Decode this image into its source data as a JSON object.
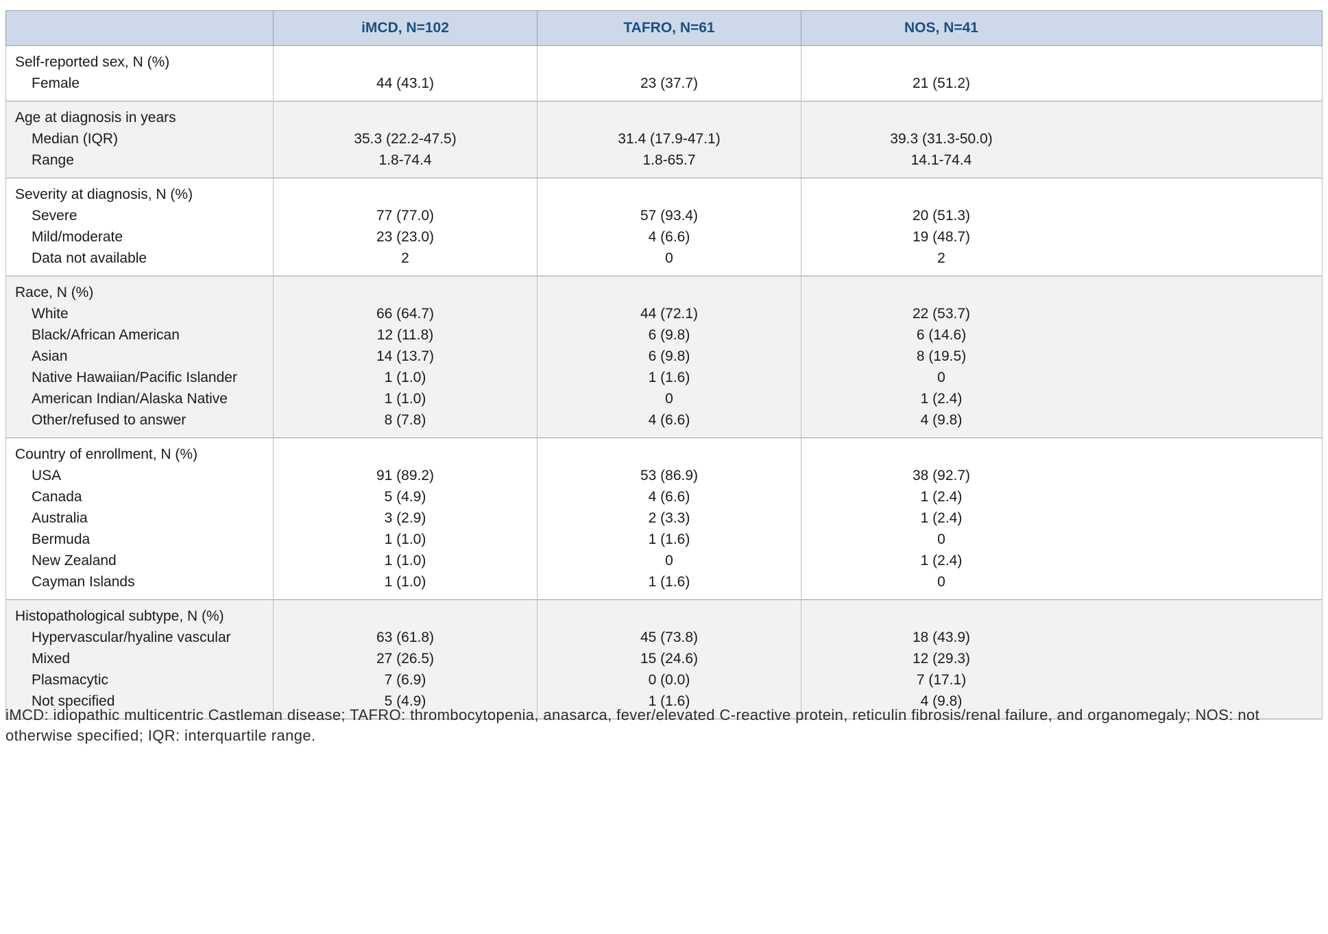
{
  "table": {
    "columns": [
      "",
      "iMCD, N=102",
      "TAFRO, N=61",
      "NOS, N=41"
    ],
    "sections": [
      {
        "header": "Self-reported sex, N (%)",
        "rows": [
          {
            "label": "Female",
            "values": [
              "44 (43.1)",
              "23 (37.7)",
              "21 (51.2)"
            ]
          }
        ]
      },
      {
        "header": "Age at diagnosis in years",
        "rows": [
          {
            "label": "Median (IQR)",
            "values": [
              "35.3 (22.2-47.5)",
              "31.4 (17.9-47.1)",
              "39.3 (31.3-50.0)"
            ]
          },
          {
            "label": "Range",
            "values": [
              "1.8-74.4",
              "1.8-65.7",
              "14.1-74.4"
            ]
          }
        ]
      },
      {
        "header": "Severity at diagnosis, N (%)",
        "rows": [
          {
            "label": "Severe",
            "values": [
              "77 (77.0)",
              "57 (93.4)",
              "20 (51.3)"
            ]
          },
          {
            "label": "Mild/moderate",
            "values": [
              "23 (23.0)",
              "4 (6.6)",
              "19 (48.7)"
            ]
          },
          {
            "label": "Data not available",
            "values": [
              "2",
              "0",
              "2"
            ]
          }
        ]
      },
      {
        "header": "Race, N (%)",
        "rows": [
          {
            "label": "White",
            "values": [
              "66 (64.7)",
              "44 (72.1)",
              "22 (53.7)"
            ]
          },
          {
            "label": "Black/African American",
            "values": [
              "12 (11.8)",
              "6 (9.8)",
              "6 (14.6)"
            ]
          },
          {
            "label": "Asian",
            "values": [
              "14 (13.7)",
              "6 (9.8)",
              "8 (19.5)"
            ]
          },
          {
            "label": "Native Hawaiian/Pacific Islander",
            "values": [
              "1 (1.0)",
              "1 (1.6)",
              "0"
            ]
          },
          {
            "label": "American Indian/Alaska Native",
            "values": [
              "1 (1.0)",
              "0",
              "1 (2.4)"
            ]
          },
          {
            "label": "Other/refused to answer",
            "values": [
              "8 (7.8)",
              "4 (6.6)",
              "4 (9.8)"
            ]
          }
        ]
      },
      {
        "header": "Country of enrollment, N (%)",
        "rows": [
          {
            "label": "USA",
            "values": [
              "91 (89.2)",
              "53 (86.9)",
              "38 (92.7)"
            ]
          },
          {
            "label": "Canada",
            "values": [
              "5 (4.9)",
              "4 (6.6)",
              "1 (2.4)"
            ]
          },
          {
            "label": "Australia",
            "values": [
              "3 (2.9)",
              "2 (3.3)",
              "1 (2.4)"
            ]
          },
          {
            "label": "Bermuda",
            "values": [
              "1 (1.0)",
              "1 (1.6)",
              "0"
            ]
          },
          {
            "label": "New Zealand",
            "values": [
              "1 (1.0)",
              "0",
              "1 (2.4)"
            ]
          },
          {
            "label": "Cayman Islands",
            "values": [
              "1 (1.0)",
              "1 (1.6)",
              "0"
            ]
          }
        ]
      },
      {
        "header": "Histopathological subtype, N (%)",
        "rows": [
          {
            "label": "Hypervascular/hyaline vascular",
            "values": [
              "63 (61.8)",
              "45 (73.8)",
              "18 (43.9)"
            ]
          },
          {
            "label": "Mixed",
            "values": [
              "27 (26.5)",
              "15 (24.6)",
              "12 (29.3)"
            ]
          },
          {
            "label": "Plasmacytic",
            "values": [
              "7 (6.9)",
              "0 (0.0)",
              "7 (17.1)"
            ]
          },
          {
            "label": "Not specified",
            "values": [
              "5 (4.9)",
              "1 (1.6)",
              "4 (9.8)"
            ]
          }
        ]
      }
    ]
  },
  "footnote": "iMCD: idiopathic multicentric Castleman disease; TAFRO: thrombocytopenia, anasarca, fever/elevated C-reactive protein, reticulin fibrosis/renal failure, and organomegaly; NOS: not otherwise specified; IQR: interquartile range.",
  "colors": {
    "header_bg": "#cdd9e9",
    "header_text": "#1c4f83",
    "shaded_row_bg": "#f2f2f2",
    "border": "#9aa0a6"
  }
}
